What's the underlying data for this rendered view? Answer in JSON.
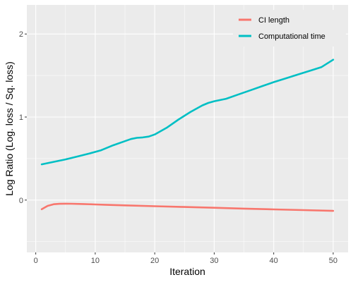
{
  "chart_data": {
    "type": "line",
    "xlabel": "Iteration",
    "ylabel": "Log Ratio (Log. loss / Sq. loss)",
    "xlim": [
      -1.5,
      52.5
    ],
    "ylim": [
      -0.63,
      2.35
    ],
    "x_ticks": [
      0,
      10,
      20,
      30,
      40,
      50
    ],
    "x_tick_labels": [
      "0",
      "10",
      "20",
      "30",
      "40",
      "50"
    ],
    "y_ticks": [
      0,
      1,
      2
    ],
    "y_tick_labels": [
      "0",
      "1",
      "2"
    ],
    "grid": true,
    "legend_position": "top-right",
    "series": [
      {
        "name": "CI length",
        "color": "#F8766D",
        "x": [
          1,
          2,
          3,
          4,
          5,
          6,
          8,
          10,
          12,
          15,
          20,
          25,
          30,
          35,
          40,
          45,
          50
        ],
        "y": [
          -0.11,
          -0.07,
          -0.05,
          -0.045,
          -0.043,
          -0.044,
          -0.048,
          -0.053,
          -0.058,
          -0.064,
          -0.074,
          -0.083,
          -0.093,
          -0.103,
          -0.112,
          -0.121,
          -0.13
        ]
      },
      {
        "name": "Computational time",
        "color": "#00BFC4",
        "x": [
          1,
          3,
          5,
          7,
          9,
          11,
          13,
          15,
          16,
          17,
          18,
          19,
          20,
          22,
          24,
          26,
          28,
          29,
          30,
          32,
          34,
          36,
          38,
          40,
          42,
          44,
          46,
          48,
          50
        ],
        "y": [
          0.43,
          0.46,
          0.49,
          0.525,
          0.56,
          0.6,
          0.66,
          0.71,
          0.735,
          0.75,
          0.755,
          0.765,
          0.79,
          0.87,
          0.97,
          1.06,
          1.14,
          1.17,
          1.19,
          1.22,
          1.27,
          1.32,
          1.37,
          1.42,
          1.465,
          1.51,
          1.555,
          1.6,
          1.69
        ]
      }
    ]
  }
}
